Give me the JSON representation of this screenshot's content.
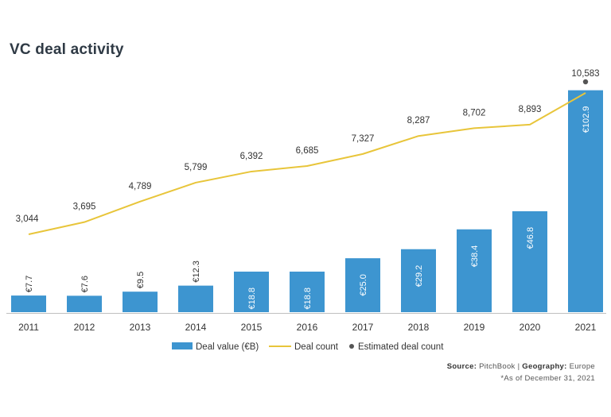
{
  "title": "VC deal activity",
  "source": {
    "source_label": "Source:",
    "source_value": "PitchBook",
    "separator": "|",
    "geo_label": "Geography:",
    "geo_value": "Europe",
    "note": "*As of December 31, 2021"
  },
  "chart_data": {
    "type": "bar",
    "title": "VC deal activity",
    "categories": [
      "2011",
      "2012",
      "2013",
      "2014",
      "2015",
      "2016",
      "2017",
      "2018",
      "2019",
      "2020",
      "2021"
    ],
    "series": [
      {
        "name": "Deal value (€B)",
        "type": "bar",
        "color": "#3d95d0",
        "values": [
          7.7,
          7.6,
          9.5,
          12.3,
          18.8,
          18.8,
          25.0,
          29.2,
          38.4,
          46.8,
          102.9
        ],
        "labels": [
          "€7.7",
          "€7.6",
          "€9.5",
          "€12.3",
          "€18.8",
          "€18.8",
          "€25.0",
          "€29.2",
          "€38.4",
          "€46.8",
          "€102.9"
        ]
      },
      {
        "name": "Deal count",
        "type": "line",
        "color": "#e8c53a",
        "values": [
          3044,
          3695,
          4789,
          5799,
          6392,
          6685,
          7327,
          8287,
          8702,
          8893,
          10583
        ],
        "labels": [
          "3,044",
          "3,695",
          "4,789",
          "5,799",
          "6,392",
          "6,685",
          "7,327",
          "8,287",
          "8,702",
          "8,893",
          "10,583"
        ]
      },
      {
        "name": "Estimated deal count",
        "type": "scatter",
        "color": "#555555",
        "values": [
          null,
          null,
          null,
          null,
          null,
          null,
          null,
          null,
          null,
          null,
          10583
        ]
      }
    ],
    "legend_position": "bottom",
    "grid": false
  }
}
